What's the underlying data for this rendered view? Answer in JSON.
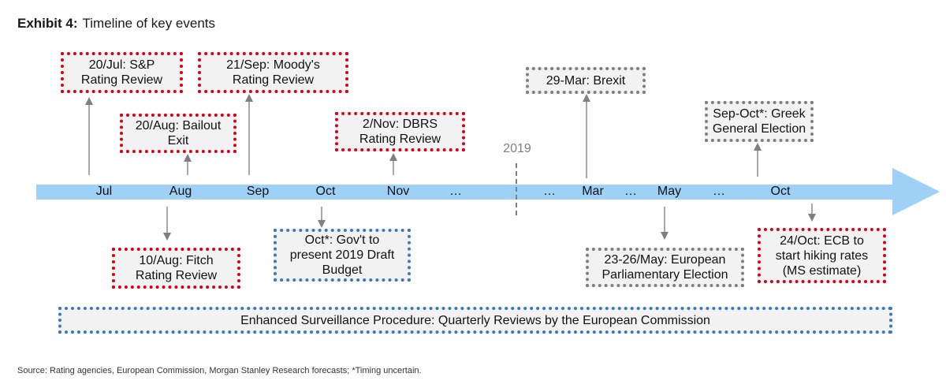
{
  "exhibit_label": "Exhibit 4:",
  "title": "Timeline of key events",
  "year_marker": "2019",
  "months": [
    "Jul",
    "Aug",
    "Sep",
    "Oct",
    "Nov",
    "…",
    "…",
    "Mar",
    "…",
    "May",
    "…",
    "Oct"
  ],
  "events_above": [
    "20/Jul: S&P\nRating Review",
    "20/Aug: Bailout\nExit",
    "21/Sep: Moody's\nRating Review",
    "2/Nov: DBRS\nRating Review",
    "29-Mar: Brexit",
    "Sep-Oct*: Greek\nGeneral Election"
  ],
  "events_below": [
    "10/Aug: Fitch\nRating Review",
    "Oct*: Gov't to\npresent 2019 Draft\nBudget",
    "23-26/May: European\nParliamentary Election",
    "24/Oct: ECB to\nstart hiking rates\n(MS estimate)"
  ],
  "banner": "Enhanced Surveillance Procedure: Quarterly Reviews by the European Commission",
  "source": "Source: Rating agencies, European Commission, Morgan Stanley Research forecasts; *Timing uncertain.",
  "colors": {
    "timeline_arrow": "#9fd0f5",
    "rating_review_border": "#d9001b",
    "political_border": "#7f7f7f",
    "procedure_border": "#3b79b8",
    "box_fill": "#f2f2f2"
  }
}
